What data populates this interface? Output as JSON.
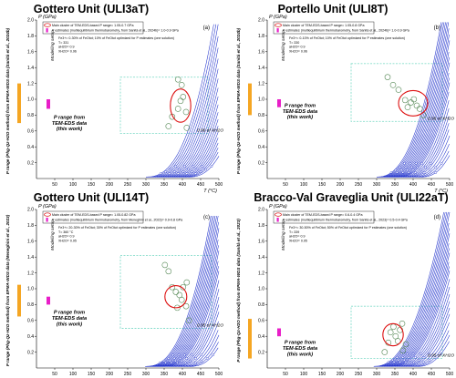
{
  "colors": {
    "curve": "#2233cc",
    "ellipse": "#dd1111",
    "dash": "#88ddcc",
    "bar_orange": "#f5a623",
    "bar_magenta": "#e81ec8",
    "circle": "#558855"
  },
  "chart_data": [
    {
      "panel": "a",
      "type": "line",
      "title": "Gottero Unit (ULI3aT)",
      "panel_label": "(a)",
      "xlabel": "T (°C)",
      "ylabel": "P (GPa)",
      "xlim": [
        0,
        500
      ],
      "ylim": [
        0,
        2.0
      ],
      "xticks": [
        50,
        100,
        150,
        200,
        250,
        300,
        350,
        400,
        450,
        500
      ],
      "yticks": [
        0.2,
        0.4,
        0.6,
        0.8,
        1.0,
        1.2,
        1.4,
        1.6,
        1.8,
        2.0
      ],
      "legend": [
        "Main cluster of TEM-EDS-based P range= 1.05-0.7 GPa",
        "P estimates (multiequilibrium thermobarometry, from Sanità et al., 2024b)= 1.0-0.9 GPa"
      ],
      "params": [
        "Fe3+= 0-30% of FeOtot; 10% of FeOtot optimized for P estimates (one solution)",
        "T= 331",
        "aH2O= 0.9",
        "XH2O= 0.96"
      ],
      "side_label": "P range (Phg-Qz-H2O method) from EPMA-WDS data (Sanità et al., 2024b)",
      "modelling_label": "Modelling setup",
      "p_range_note": "P range from TEM-EDS data (this work)",
      "xh2o_label": "0.96 of XH2O",
      "orange_range": [
        0.7,
        1.2
      ],
      "magenta_range": [
        0.88,
        1.0
      ],
      "dash_box": {
        "t": [
          230,
          470
        ],
        "p": [
          0.57,
          1.28
        ]
      },
      "ellipse": {
        "t": 395,
        "p": 0.92,
        "rt": 28,
        "rp": 0.21
      },
      "tem_points": [
        [
          362,
          0.66
        ],
        [
          372,
          0.78
        ],
        [
          388,
          0.88
        ],
        [
          395,
          0.98
        ],
        [
          402,
          1.03
        ],
        [
          398,
          1.18
        ],
        [
          410,
          0.84
        ],
        [
          412,
          0.64
        ],
        [
          388,
          1.25
        ]
      ],
      "curve_starts": [
        300,
        306,
        312,
        318,
        324,
        330,
        336,
        342,
        348,
        354,
        360,
        366,
        372,
        378,
        384,
        390,
        396,
        402,
        408,
        416
      ],
      "curve_exp": 2.5,
      "curve_reach": 185
    },
    {
      "panel": "b",
      "type": "line",
      "title": "Portello Unit (ULI8T)",
      "panel_label": "(b)",
      "xlabel": "T (°C)",
      "ylabel": "P (GPa)",
      "xlim": [
        0,
        500
      ],
      "ylim": [
        0,
        2.0
      ],
      "xticks": [
        50,
        100,
        150,
        200,
        250,
        300,
        350,
        400,
        450,
        500
      ],
      "yticks": [
        0.2,
        0.4,
        0.6,
        0.8,
        1.0,
        1.2,
        1.4,
        1.6,
        1.8,
        2.0
      ],
      "legend": [
        "Main cluster of TEM-EDS-based P range= 1.05-0.8 GPa",
        "P estimates (multiequilibrium thermobarometry, from Sanità et al., 2024b)= 1.0-0.9 GPa"
      ],
      "params": [
        "Fe3+= 0-10% of FeOtot; 10% of FeOtot optimized for P estimates (one solution)",
        "T= 330",
        "aH2O= 0.9",
        "XH2O= 0.96"
      ],
      "side_label": "P range (Phg-Qz-H2O method) from EPMA-WDS data (Sanità et al., 2024b)",
      "modelling_label": "Modelling setup",
      "p_range_note": "P range from TEM-EDS data (this work)",
      "xh2o_label": "0.96 of XH2O",
      "orange_range": [
        0.8,
        1.2
      ],
      "magenta_range": [
        0.9,
        1.0
      ],
      "dash_box": {
        "t": [
          230,
          480
        ],
        "p": [
          0.72,
          1.45
        ]
      },
      "ellipse": {
        "t": 400,
        "p": 0.95,
        "rt": 40,
        "rp": 0.16
      },
      "tem_points": [
        [
          330,
          1.28
        ],
        [
          345,
          1.18
        ],
        [
          360,
          1.12
        ],
        [
          378,
          0.99
        ],
        [
          394,
          0.96
        ],
        [
          402,
          1.0
        ],
        [
          410,
          0.92
        ],
        [
          418,
          0.88
        ],
        [
          428,
          0.8
        ],
        [
          385,
          0.9
        ]
      ],
      "curve_starts": [
        300,
        304,
        308,
        312,
        316,
        320,
        324,
        328,
        332,
        336,
        340,
        344,
        348,
        352,
        356,
        360,
        366,
        372,
        378,
        384,
        390,
        398,
        406,
        414,
        422
      ],
      "curve_exp": 2.4,
      "curve_reach": 175
    },
    {
      "panel": "c",
      "type": "line",
      "title": "Gottero Unit (ULI14T)",
      "panel_label": "(c)",
      "xlabel": "T (°C)",
      "ylabel": "P (GPa)",
      "xlim": [
        0,
        500
      ],
      "ylim": [
        0,
        2.0
      ],
      "xticks": [
        50,
        100,
        150,
        200,
        250,
        300,
        350,
        400,
        450,
        500
      ],
      "yticks": [
        0.2,
        0.4,
        0.6,
        0.8,
        1.0,
        1.2,
        1.4,
        1.6,
        1.8,
        2.0
      ],
      "legend": [
        "Main cluster of TEM-EDS-based P range= 1.05-0.82 GPa",
        "P estimates (multiequilibrium thermobarometry, from Meneghini et al., 2023)= 0.9-0.8 GPa"
      ],
      "params": [
        "Fe3+= 20-30% of FeOtot; 30% of FeOtot optimized for P estimates (one solution)",
        "T= 360 °C",
        "aH2O= 0.9",
        "XH2O= 0.95"
      ],
      "side_label": "P range (Phg-Qz-H2O method) from EPMA-WDS data (Meneghini et al., 2023)",
      "modelling_label": "Modelling setup",
      "p_range_note": "P range from TEM-EDS data (this work)",
      "xh2o_label": "0.95 of XH2O",
      "orange_range": [
        0.65,
        1.05
      ],
      "magenta_range": [
        0.8,
        0.9
      ],
      "dash_box": {
        "t": [
          230,
          480
        ],
        "p": [
          0.5,
          1.42
        ]
      },
      "ellipse": {
        "t": 382,
        "p": 0.9,
        "rt": 30,
        "rp": 0.14
      },
      "tem_points": [
        [
          352,
          1.3
        ],
        [
          362,
          1.22
        ],
        [
          372,
          1.02
        ],
        [
          382,
          0.96
        ],
        [
          392,
          0.92
        ],
        [
          398,
          0.86
        ],
        [
          402,
          1.02
        ],
        [
          412,
          1.08
        ],
        [
          410,
          0.78
        ],
        [
          418,
          0.6
        ],
        [
          386,
          0.76
        ]
      ],
      "curve_starts": [
        298,
        302,
        306,
        310,
        314,
        318,
        322,
        326,
        330,
        334,
        338,
        342,
        346,
        350,
        356,
        362,
        368,
        374,
        380,
        388,
        396,
        404,
        412,
        420
      ],
      "curve_exp": 2.5,
      "curve_reach": 180
    },
    {
      "panel": "d",
      "type": "line",
      "title": "Bracco-Val Graveglia Unit (ULI22aT)",
      "panel_label": "(d)",
      "xlabel": "T (°C)",
      "ylabel": "P (GPa)",
      "xlim": [
        0,
        500
      ],
      "ylim": [
        0,
        2.0
      ],
      "xticks": [
        50,
        100,
        150,
        200,
        250,
        300,
        350,
        400,
        450,
        500
      ],
      "yticks": [
        0.2,
        0.4,
        0.6,
        0.8,
        1.0,
        1.2,
        1.4,
        1.6,
        1.8,
        2.0
      ],
      "legend": [
        "Main cluster of TEM-EDS-based P range= 0.6-0.4 GPa",
        "P estimates (multiequilibrium thermobarometry, from Sanità et al., 2023)= 0.5-0.4 GPa"
      ],
      "params": [
        "Fe3+= 30-50% of FeOtot; 50% of FeOtot optimized for P estimates (one solution)",
        "T= 339",
        "aH2O= 0.9",
        "XH2O= 0.95"
      ],
      "side_label": "P range (Phg-Qz-H2O method) from EPMA-WDS data (Sanità et al., 2023)",
      "modelling_label": "Modelling setup",
      "p_range_note": "P range from TEM-EDS data (this work)",
      "xh2o_label": "0.95 of XH2O",
      "orange_range": [
        0.12,
        0.62
      ],
      "magenta_range": [
        0.4,
        0.5
      ],
      "dash_box": {
        "t": [
          230,
          480
        ],
        "p": [
          0.12,
          0.78
        ]
      },
      "ellipse": {
        "t": 345,
        "p": 0.42,
        "rt": 28,
        "rp": 0.14
      },
      "tem_points": [
        [
          322,
          0.2
        ],
        [
          332,
          0.32
        ],
        [
          338,
          0.45
        ],
        [
          346,
          0.52
        ],
        [
          352,
          0.4
        ],
        [
          358,
          0.34
        ],
        [
          364,
          0.48
        ],
        [
          370,
          0.56
        ],
        [
          372,
          0.22
        ],
        [
          380,
          0.3
        ]
      ],
      "curve_starts": [
        292,
        296,
        300,
        304,
        308,
        312,
        316,
        320,
        324,
        328,
        332,
        336,
        340,
        344,
        350,
        356,
        362,
        368,
        374,
        380,
        388,
        396,
        404,
        412
      ],
      "curve_exp": 2.3,
      "curve_reach": 190
    }
  ]
}
